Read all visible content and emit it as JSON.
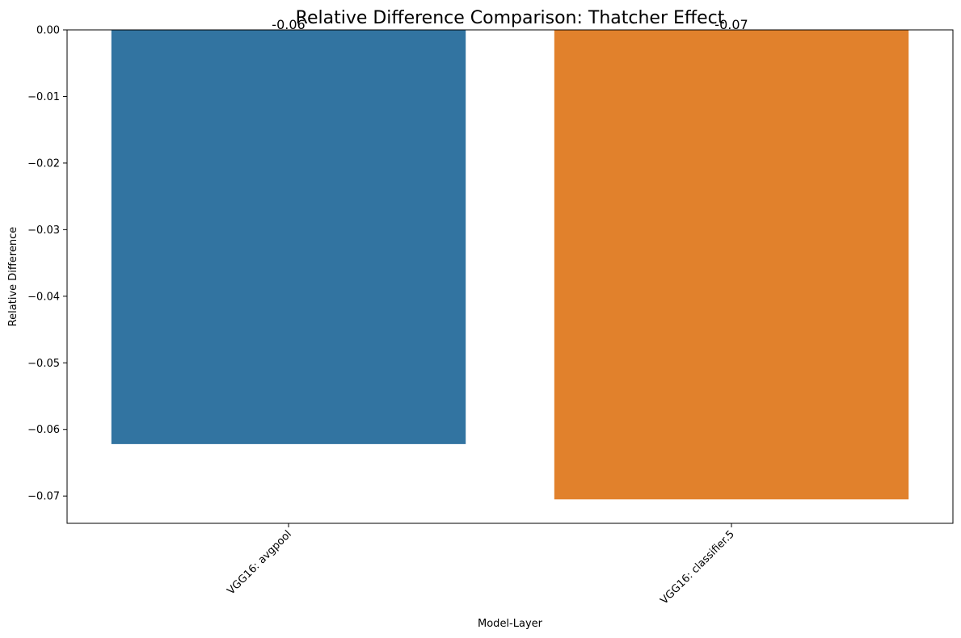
{
  "chart_data": {
    "type": "bar",
    "title": "Relative Difference Comparison: Thatcher Effect",
    "xlabel": "Model-Layer",
    "ylabel": "Relative Difference",
    "categories": [
      "VGG16: avgpool",
      "VGG16: classifier.5"
    ],
    "values": [
      -0.0622,
      -0.0705
    ],
    "data_labels": [
      "-0.06",
      "-0.07"
    ],
    "colors": [
      "#3274a1",
      "#e1812c"
    ],
    "ylim": [
      -0.0741,
      0.0
    ],
    "yticks": [
      0.0,
      -0.01,
      -0.02,
      -0.03,
      -0.04,
      -0.05,
      -0.06,
      -0.07
    ],
    "ytick_labels": [
      "0.00",
      "−0.01",
      "−0.02",
      "−0.03",
      "−0.04",
      "−0.05",
      "−0.06",
      "−0.07"
    ],
    "grid": false,
    "legend": "none"
  }
}
